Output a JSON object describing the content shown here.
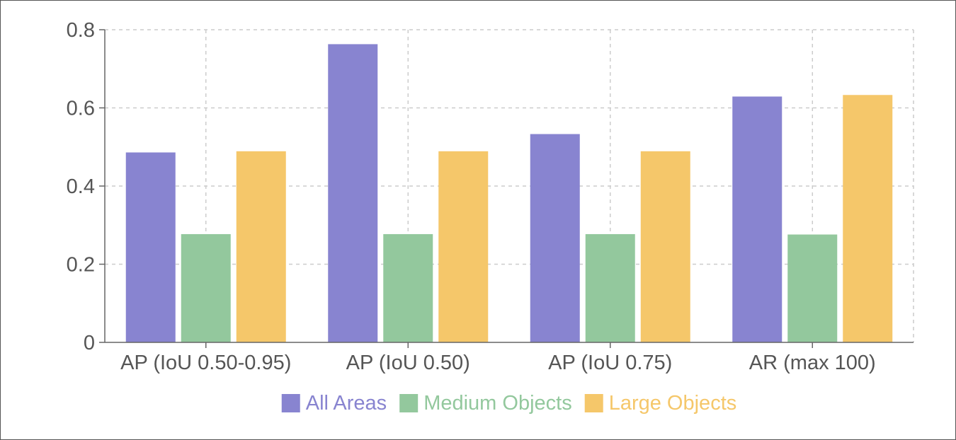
{
  "chart_data": {
    "type": "bar",
    "categories": [
      "AP (IoU 0.50-0.95)",
      "AP (IoU 0.50)",
      "AP (IoU 0.75)",
      "AR (max 100)"
    ],
    "series": [
      {
        "name": "All Areas",
        "color": "#8884d0",
        "values": [
          0.486,
          0.763,
          0.533,
          0.629
        ]
      },
      {
        "name": "Medium Objects",
        "color": "#93c89d",
        "values": [
          0.277,
          0.277,
          0.277,
          0.276
        ]
      },
      {
        "name": "Large Objects",
        "color": "#f5c76a",
        "values": [
          0.489,
          0.489,
          0.489,
          0.633
        ]
      }
    ],
    "yticks": [
      "0",
      "0.2",
      "0.4",
      "0.6",
      "0.8"
    ],
    "ylim": [
      0,
      0.8
    ],
    "grid": true,
    "legend_position": "bottom-center"
  }
}
